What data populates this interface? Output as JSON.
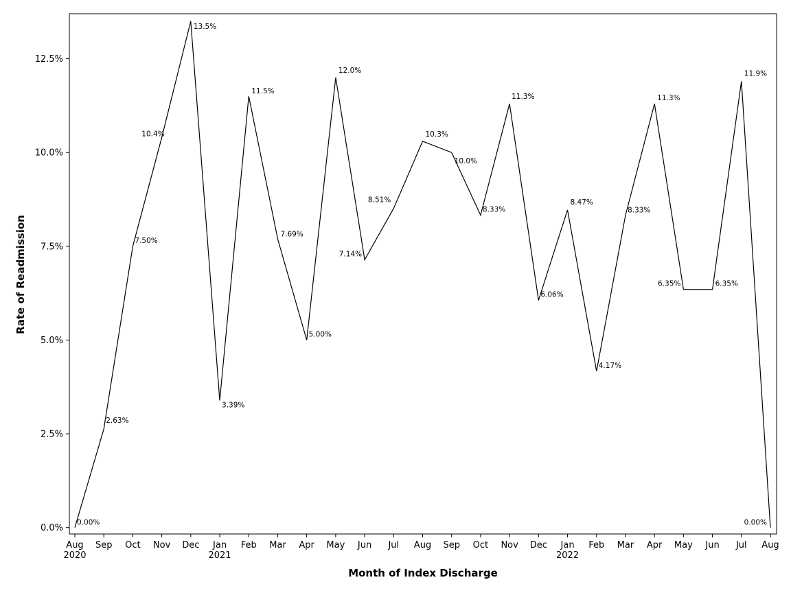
{
  "chart_data": {
    "type": "line",
    "title": "",
    "xlabel": "Month of Index Discharge",
    "ylabel": "Rate of Readmission",
    "ylim": [
      -0.17,
      13.7
    ],
    "yticks": [
      0,
      2.5,
      5,
      7.5,
      10,
      12.5
    ],
    "ytick_labels": [
      "0.0%",
      "2.5%",
      "5.0%",
      "7.5%",
      "10.0%",
      "12.5%"
    ],
    "grid": false,
    "legend": "none",
    "line_color": "#000000",
    "x": [
      "Aug",
      "Sep",
      "Oct",
      "Nov",
      "Dec",
      "Jan",
      "Feb",
      "Mar",
      "Apr",
      "May",
      "Jun",
      "Jul",
      "Aug",
      "Sep",
      "Oct",
      "Nov",
      "Dec",
      "Jan",
      "Feb",
      "Mar",
      "Apr",
      "May",
      "Jun",
      "Jul",
      "Aug"
    ],
    "year_labels": [
      "2020",
      "",
      "",
      "",
      "",
      "2021",
      "",
      "",
      "",
      "",
      "",
      "",
      "",
      "",
      "",
      "",
      "",
      "2022",
      "",
      "",
      "",
      "",
      "",
      "",
      ""
    ],
    "series": [
      {
        "values": [
          0.0,
          2.63,
          7.5,
          10.4,
          13.5,
          3.39,
          11.5,
          7.69,
          5.0,
          12.0,
          7.14,
          8.51,
          10.3,
          10.0,
          8.33,
          11.3,
          6.06,
          8.47,
          4.17,
          8.33,
          11.3,
          6.35,
          6.35,
          11.9,
          0.0
        ],
        "labels": [
          "0.00%",
          "2.63%",
          "7.50%",
          "10.4%",
          "13.5%",
          "3.39%",
          "11.5%",
          "7.69%",
          "5.00%",
          "12.0%",
          "7.14%",
          "8.51%",
          "10.3%",
          "10.0%",
          "8.33%",
          "11.3%",
          "6.06%",
          "8.47%",
          "4.17%",
          "8.33%",
          "11.3%",
          "6.35%",
          "6.35%",
          "11.9%",
          "0.00%"
        ]
      }
    ]
  }
}
